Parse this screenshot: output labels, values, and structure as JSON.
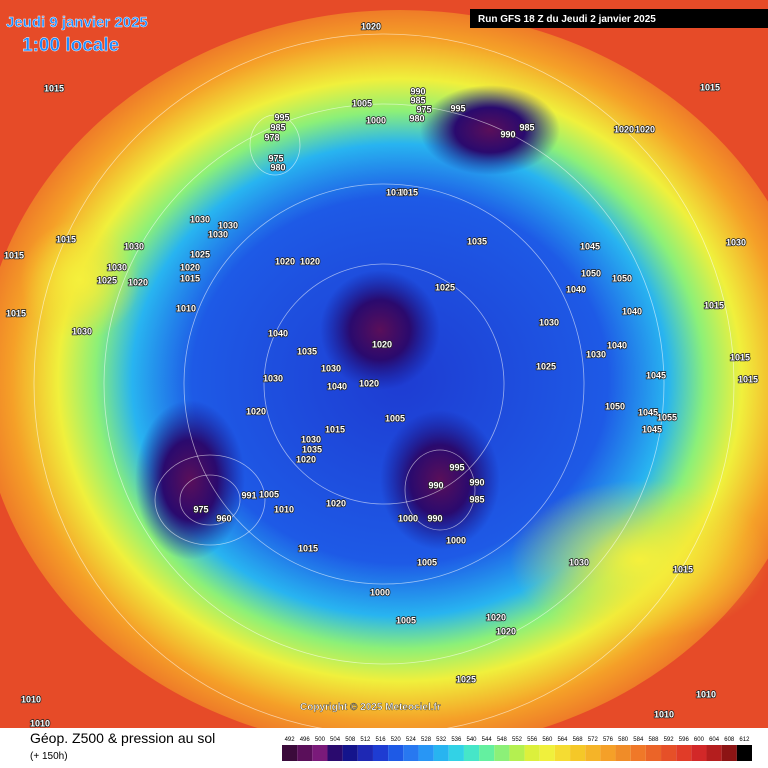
{
  "header": {
    "date": "Jeudi 9 janvier 2025",
    "time": "1:00 locale",
    "run": "Run GFS 18 Z du Jeudi 2 janvier 2025"
  },
  "copyright": "Copyright © 2025 Meteociel.fr",
  "footer": {
    "title": "Géop. Z500 & pression au sol",
    "lead": "(+ 150h)"
  },
  "legend": {
    "levels": [
      492,
      496,
      500,
      504,
      508,
      512,
      516,
      520,
      524,
      528,
      532,
      536,
      540,
      544,
      548,
      552,
      556,
      560,
      564,
      568,
      572,
      576,
      580,
      584,
      588,
      592,
      596,
      600,
      604,
      608,
      612
    ],
    "colors": [
      "#3b0a3b",
      "#5a0f5a",
      "#7a1a7a",
      "#2a0a6e",
      "#14148c",
      "#1e28b4",
      "#1e3cd2",
      "#1e5ae6",
      "#2878f0",
      "#2896f5",
      "#28b4f0",
      "#32d2e6",
      "#46e6c8",
      "#64f0a0",
      "#8cf078",
      "#b4f050",
      "#dcf03c",
      "#f0f03c",
      "#f5dc32",
      "#f5c828",
      "#f5b428",
      "#f5a028",
      "#f08c28",
      "#f07828",
      "#eb6428",
      "#e65028",
      "#e13c28",
      "#d22828",
      "#b41e1e",
      "#8c1414",
      "#000000"
    ]
  },
  "isobar_labels": [
    1020,
    1015,
    1015,
    995,
    985,
    978,
    975,
    980,
    990,
    985,
    975,
    980,
    995,
    1005,
    1000,
    990,
    985,
    1020,
    1020,
    1010,
    1015,
    1035,
    1045,
    1050,
    1050,
    1040,
    1030,
    1040,
    1015,
    1030,
    1025,
    1020,
    1040,
    1035,
    1030,
    1040,
    1020,
    1030,
    1040,
    1030,
    1025,
    1015,
    1015,
    1045,
    1050,
    1045,
    1055,
    1045,
    1005,
    1015,
    1020,
    1030,
    1035,
    1020,
    995,
    990,
    990,
    985,
    1000,
    990,
    1000,
    1005,
    1030,
    1015,
    1000,
    1005,
    1020,
    1020,
    1025,
    1010,
    1010,
    1010,
    1010,
    1015,
    1015,
    1030,
    1030,
    1025,
    1020,
    1030,
    1030,
    1030,
    1025,
    1020,
    1015,
    1010,
    1030,
    1020,
    1020,
    1005,
    1010,
    1015,
    1020,
    975,
    960,
    991,
    1015
  ]
}
